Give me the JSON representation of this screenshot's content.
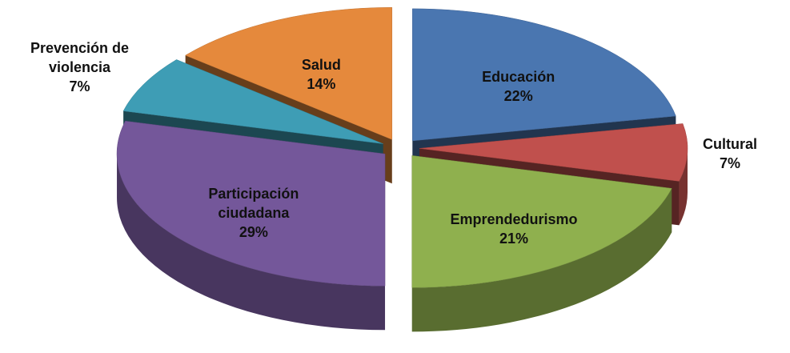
{
  "chart_data": {
    "type": "pie",
    "categories": [
      "Educación",
      "Cultural",
      "Emprendedurismo",
      "Participación ciudadana",
      "Prevención de violencia",
      "Salud"
    ],
    "values": [
      22,
      7,
      21,
      29,
      7,
      14
    ],
    "value_labels": [
      "22%",
      "7%",
      "21%",
      "29%",
      "7%",
      "14%"
    ],
    "colors": [
      "#4a76b0",
      "#c0504d",
      "#8fb04e",
      "#74579a",
      "#3e9db5",
      "#e5893c"
    ]
  }
}
